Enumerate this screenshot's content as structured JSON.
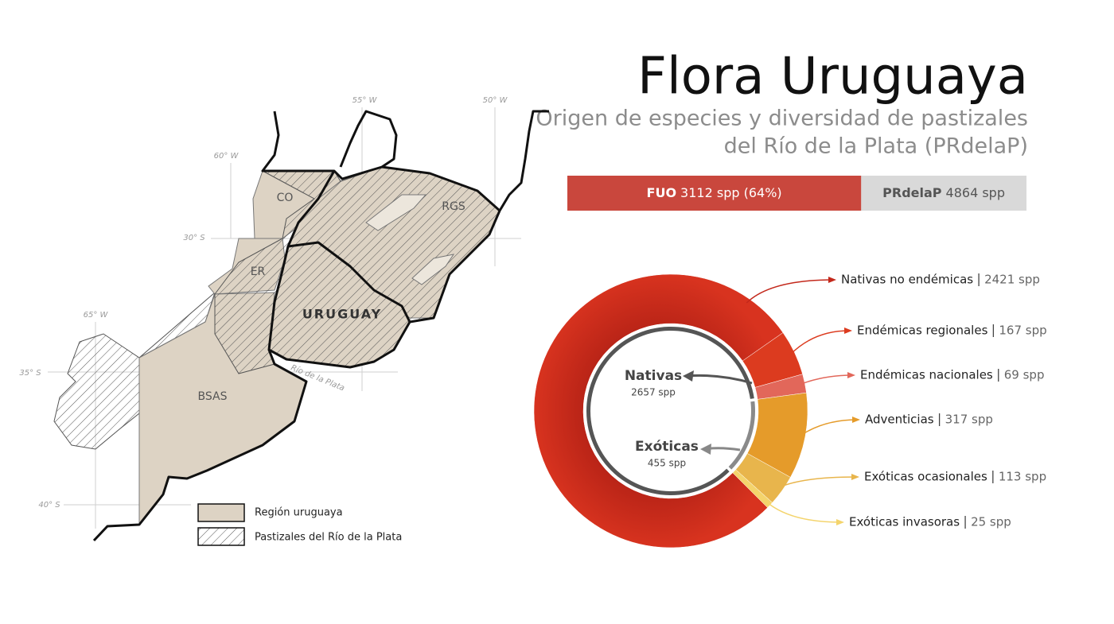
{
  "header": {
    "title": "Flora Uruguaya",
    "subtitle": [
      "Origen de especies y diversidad de pastizales",
      "del Río de la Plata (PRdelaP)"
    ]
  },
  "map": {
    "regions": [
      "CO",
      "RGS",
      "ER",
      "URUGUAY",
      "BSAS"
    ],
    "graticule": [
      "55° W",
      "50° W",
      "60° W",
      "65° W",
      "30° S",
      "35° S",
      "40° S"
    ],
    "river": "Río de la Plata",
    "legend": [
      "Región uruguaya",
      "Pastizales del Río de la Plata"
    ]
  },
  "chart_data": [
    {
      "type": "bar",
      "orientation": "horizontal",
      "overlay": true,
      "xlim": [
        0,
        4864
      ],
      "series": [
        {
          "name": "PRdelaP",
          "color": "#d9d9d9",
          "values": [
            4864
          ],
          "value_labels": [
            "4864 spp"
          ]
        },
        {
          "name": "FUO",
          "color": "#c9473d",
          "values": [
            3112
          ],
          "value_labels": [
            "3112 spp (64%)"
          ]
        }
      ]
    },
    {
      "type": "pie",
      "donut": true,
      "categories": [
        "Nativas no endémicas",
        "Endémicas regionales",
        "Endémicas nacionales",
        "Adventicias",
        "Exóticas ocasionales",
        "Exóticas invasoras"
      ],
      "values": [
        2421,
        167,
        69,
        317,
        113,
        25
      ],
      "value_labels": [
        "2421 spp",
        "167 spp",
        "69 spp",
        "317 spp",
        "113 spp",
        "25 spp"
      ],
      "colors": [
        "#c3281b",
        "#dc3b1f",
        "#e2675a",
        "#e59b2a",
        "#e8b54c",
        "#f4d46c"
      ],
      "inner": {
        "categories": [
          "Nativas",
          "Exóticas"
        ],
        "values": [
          2657,
          455
        ],
        "value_labels": [
          "2657 spp",
          "455 spp"
        ],
        "colors": [
          "#555555",
          "#8a8a8a"
        ]
      }
    }
  ]
}
